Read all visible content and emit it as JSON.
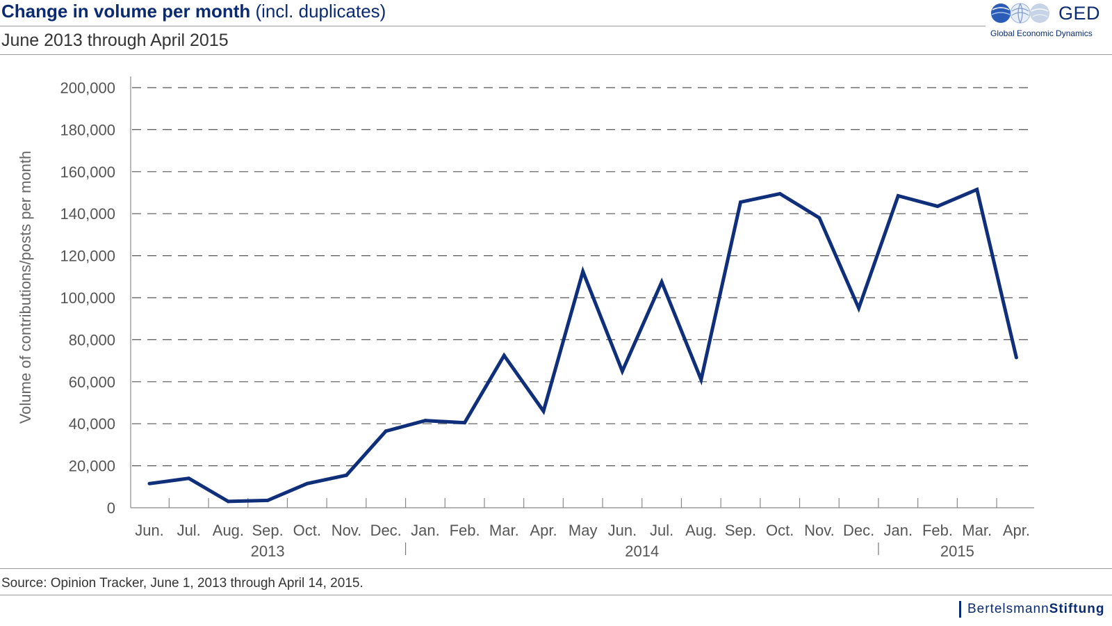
{
  "header": {
    "title_bold": "Change in volume per month",
    "title_rest": "(incl. duplicates)",
    "subtitle": "June 2013 through April 2015"
  },
  "logo": {
    "name": "GED",
    "tagline": "Global Economic Dynamics"
  },
  "footer": {
    "source": "Source: Opinion Tracker, June 1, 2013 through April 14, 2015.",
    "brand_part1": "Bertelsmann",
    "brand_part2": "Stiftung"
  },
  "colors": {
    "accent": "#0a2a72",
    "line": "#0f2f7a",
    "grid": "#555555",
    "text": "#333333"
  },
  "chart_data": {
    "type": "line",
    "title": "Change in volume per month (incl. duplicates)",
    "subtitle": "June 2013 through April 2015",
    "xlabel": "",
    "ylabel": "Volume of contributions/posts per month",
    "ylim": [
      0,
      200000
    ],
    "yticks": [
      "0",
      "20,000",
      "40,000",
      "60,000",
      "80,000",
      "100,000",
      "120,000",
      "140,000",
      "160,000",
      "180,000",
      "200,000"
    ],
    "categories": [
      "Jun.",
      "Jul.",
      "Aug.",
      "Sep.",
      "Oct.",
      "Nov.",
      "Dec.",
      "Jan.",
      "Feb.",
      "Mar.",
      "Apr.",
      "May",
      "Jun.",
      "Jul.",
      "Aug.",
      "Sep.",
      "Oct.",
      "Nov.",
      "Dec.",
      "Jan.",
      "Feb.",
      "Mar.",
      "Apr."
    ],
    "year_groups": [
      {
        "label": "2013",
        "start": 0,
        "end": 6
      },
      {
        "label": "2014",
        "start": 7,
        "end": 18
      },
      {
        "label": "2015",
        "start": 19,
        "end": 22
      }
    ],
    "grid": "horizontal dashed",
    "legend": "none",
    "series": [
      {
        "values": [
          11500,
          14000,
          3000,
          3500,
          11500,
          15500,
          36500,
          41500,
          40500,
          72500,
          46000,
          112500,
          65000,
          107500,
          61000,
          145500,
          149500,
          138000,
          95000,
          148500,
          143500,
          151500,
          71500
        ]
      }
    ]
  }
}
